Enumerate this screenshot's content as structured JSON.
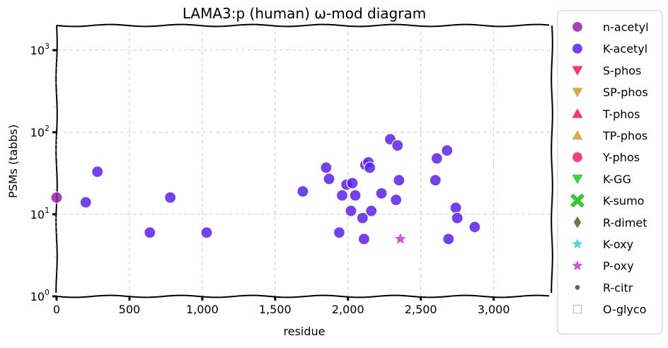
{
  "chart_data": {
    "type": "scatter",
    "title": "LAMA3:p (human) ω-mod diagram",
    "xlabel": "residue",
    "ylabel": "PSMs (tabbs)",
    "x_scale": "linear",
    "y_scale": "log",
    "xlim": [
      0,
      3400
    ],
    "ylim": [
      1,
      2000
    ],
    "grid": true,
    "legend_placement": "outside-right",
    "x_ticks": [
      {
        "value": 0,
        "label": "0"
      },
      {
        "value": 500,
        "label": "500"
      },
      {
        "value": 1000,
        "label": "1,000"
      },
      {
        "value": 1500,
        "label": "1,500"
      },
      {
        "value": 2000,
        "label": "2,000"
      },
      {
        "value": 2500,
        "label": "2,500"
      },
      {
        "value": 3000,
        "label": "3,000"
      }
    ],
    "y_ticks": [
      {
        "value": 1,
        "base": "10",
        "exp": "0"
      },
      {
        "value": 10,
        "base": "10",
        "exp": "1"
      },
      {
        "value": 100,
        "base": "10",
        "exp": "2"
      },
      {
        "value": 1000,
        "base": "10",
        "exp": "3"
      }
    ],
    "series": [
      {
        "name": "n-acetyl",
        "color": "#9b1fa8",
        "marker": "circle",
        "points": [
          [
            0,
            16
          ]
        ]
      },
      {
        "name": "K-acetyl",
        "color": "#5a1ef0",
        "marker": "circle",
        "points": [
          [
            200,
            14
          ],
          [
            280,
            33
          ],
          [
            640,
            6
          ],
          [
            780,
            16
          ],
          [
            1030,
            6
          ],
          [
            1690,
            19
          ],
          [
            1850,
            37
          ],
          [
            1870,
            27
          ],
          [
            1940,
            6
          ],
          [
            1960,
            17
          ],
          [
            1990,
            23
          ],
          [
            2020,
            11
          ],
          [
            2030,
            24
          ],
          [
            2050,
            17
          ],
          [
            2100,
            9
          ],
          [
            2110,
            5
          ],
          [
            2120,
            40
          ],
          [
            2140,
            43
          ],
          [
            2150,
            37
          ],
          [
            2160,
            11
          ],
          [
            2230,
            18
          ],
          [
            2290,
            82
          ],
          [
            2330,
            15
          ],
          [
            2340,
            69
          ],
          [
            2350,
            26
          ],
          [
            2600,
            26
          ],
          [
            2610,
            48
          ],
          [
            2680,
            60
          ],
          [
            2690,
            5
          ],
          [
            2740,
            12
          ],
          [
            2750,
            9
          ],
          [
            2870,
            7
          ]
        ]
      },
      {
        "name": "S-phos",
        "color": "#ff1f5a",
        "marker": "triangle-down",
        "points": []
      },
      {
        "name": "SP-phos",
        "color": "#d4a23a",
        "marker": "triangle-down",
        "points": []
      },
      {
        "name": "T-phos",
        "color": "#ff1f5a",
        "marker": "triangle-up",
        "points": []
      },
      {
        "name": "TP-phos",
        "color": "#d4a23a",
        "marker": "triangle-up",
        "points": []
      },
      {
        "name": "Y-phos",
        "color": "#ff1f5a",
        "marker": "circle",
        "points": []
      },
      {
        "name": "K-GG",
        "color": "#2ecc2e",
        "marker": "triangle-down",
        "points": []
      },
      {
        "name": "K-sumo",
        "color": "#2ecc2e",
        "marker": "x",
        "points": []
      },
      {
        "name": "R-dimet",
        "color": "#5c6b2e",
        "marker": "diamond",
        "points": []
      },
      {
        "name": "K-oxy",
        "color": "#2ed0d8",
        "marker": "star",
        "points": []
      },
      {
        "name": "P-oxy",
        "color": "#c832d6",
        "marker": "star",
        "points": [
          [
            2360,
            5
          ]
        ]
      },
      {
        "name": "R-citr",
        "color": "#666666",
        "marker": "dot",
        "points": []
      },
      {
        "name": "O-glyco",
        "color": "#bbbbbb",
        "marker": "square-open",
        "points": []
      }
    ]
  }
}
